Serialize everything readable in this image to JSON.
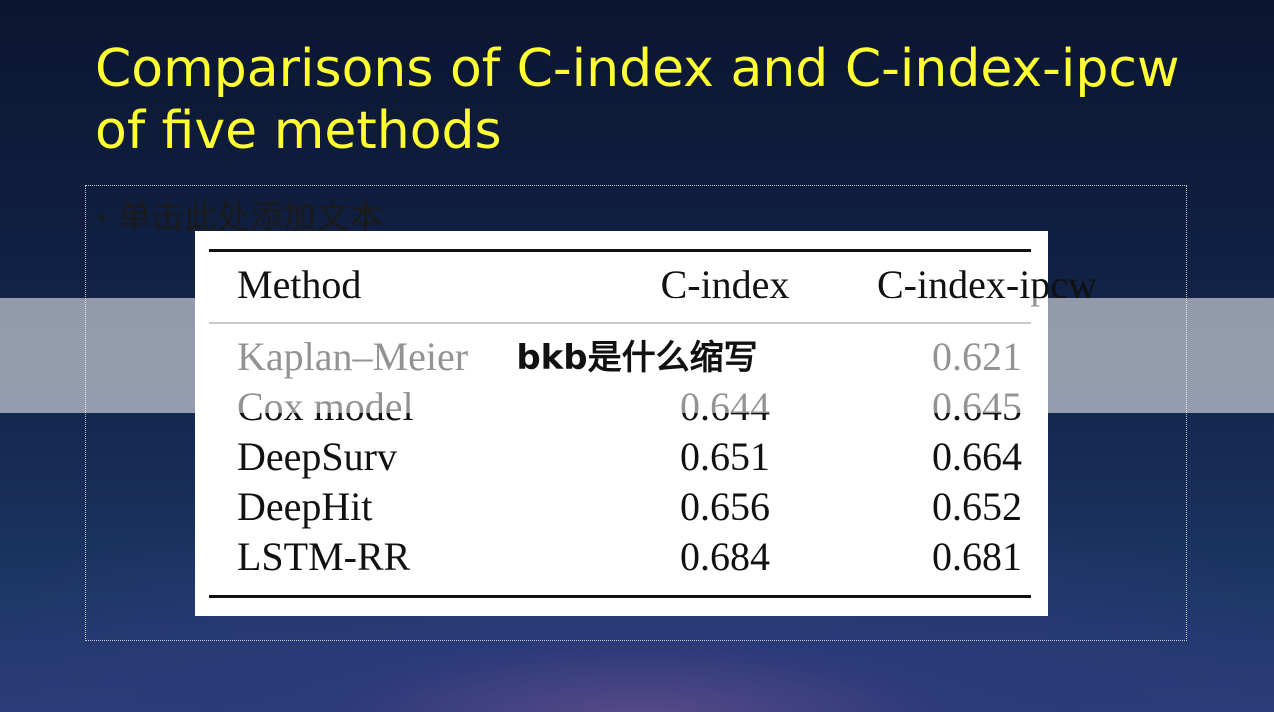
{
  "title": "Comparisons of C-index and C-index-ipcw of five methods",
  "placeholder": "单击此处添加文本",
  "table": {
    "header": [
      "Method",
      "C-index",
      "C-index-ipcw"
    ],
    "rows": [
      [
        "Kaplan–Meier",
        null,
        "0.621"
      ],
      [
        "Cox model",
        "0.644",
        "0.645"
      ],
      [
        "DeepSurv",
        "0.651",
        "0.664"
      ],
      [
        "DeepHit",
        "0.656",
        "0.652"
      ],
      [
        "LSTM-RR",
        "0.684",
        "0.681"
      ]
    ]
  },
  "overlay": "bkb是什么缩写"
}
